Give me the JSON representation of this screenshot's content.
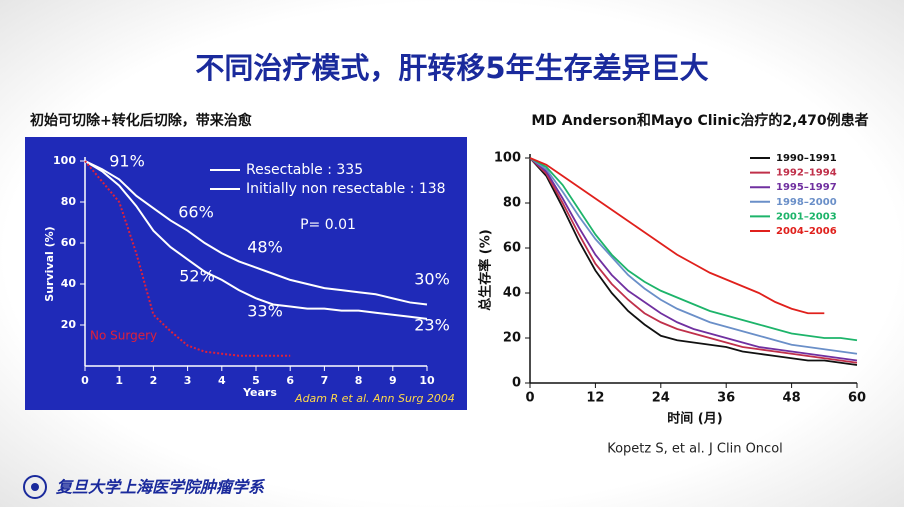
{
  "title": "不同治疗模式，肝转移5年生存差异巨大",
  "footer": "复旦大学上海医学院肿瘤学系",
  "chart_data": [
    {
      "type": "line",
      "subtitle": "初始可切除+转化后切除，带来治愈",
      "xlabel": "Years",
      "ylabel": "Survival (%)",
      "xlim": [
        0,
        10
      ],
      "ylim": [
        0,
        100
      ],
      "xticks": [
        0,
        1,
        2,
        3,
        4,
        5,
        6,
        7,
        8,
        9,
        10
      ],
      "yticks": [
        20,
        40,
        60,
        80,
        100
      ],
      "x": [
        0,
        0.5,
        1,
        1.5,
        2,
        2.5,
        3,
        3.5,
        4,
        4.5,
        5,
        5.5,
        6,
        6.5,
        7,
        7.5,
        8,
        8.5,
        9,
        9.5,
        10
      ],
      "series": [
        {
          "name": "Resectable : 335",
          "color": "#ffffff",
          "values": [
            100,
            96,
            91,
            83,
            77,
            71,
            66,
            60,
            55,
            51,
            48,
            45,
            42,
            40,
            38,
            37,
            36,
            35,
            33,
            31,
            30
          ]
        },
        {
          "name": "Initially non resectable : 138",
          "color": "#ffffff",
          "values": [
            100,
            95,
            88,
            78,
            66,
            58,
            52,
            46,
            42,
            37,
            33,
            30,
            29,
            28,
            28,
            27,
            27,
            26,
            25,
            24,
            23
          ]
        },
        {
          "name": "No Surgery",
          "color": "#e0203a",
          "dashed": true,
          "values": [
            100,
            90,
            80,
            55,
            25,
            17,
            10,
            7,
            6,
            5,
            5,
            5,
            5,
            null,
            null,
            null,
            null,
            null,
            null,
            null,
            null
          ]
        }
      ],
      "annotations": [
        "91%",
        "66%",
        "48%",
        "52%",
        "33%",
        "30%",
        "23%",
        "P= 0.01",
        "Adam R et al. Ann Surg 2004"
      ]
    },
    {
      "type": "line",
      "title": "MD Anderson和Mayo Clinic治疗的2,470例患者",
      "xlabel": "时间 (月)",
      "ylabel": "总生存率 (%)",
      "source": "Kopetz S, et al. J Clin Oncol",
      "xlim": [
        0,
        60
      ],
      "ylim": [
        0,
        100
      ],
      "xticks": [
        0,
        12,
        24,
        36,
        48,
        60
      ],
      "yticks": [
        0,
        20,
        40,
        60,
        80,
        100
      ],
      "x": [
        0,
        3,
        6,
        9,
        12,
        15,
        18,
        21,
        24,
        27,
        30,
        33,
        36,
        39,
        42,
        45,
        48,
        51,
        54,
        57,
        60
      ],
      "series": [
        {
          "name": "1990–1991",
          "color": "#111111",
          "values": [
            100,
            92,
            78,
            63,
            50,
            40,
            32,
            26,
            21,
            19,
            18,
            17,
            16,
            14,
            13,
            12,
            11,
            10,
            10,
            9,
            8
          ]
        },
        {
          "name": "1992–1994",
          "color": "#c0304a",
          "values": [
            100,
            93,
            80,
            66,
            53,
            44,
            37,
            31,
            27,
            24,
            22,
            20,
            18,
            16,
            15,
            14,
            13,
            12,
            11,
            10,
            9
          ]
        },
        {
          "name": "1995–1997",
          "color": "#7030a0",
          "values": [
            100,
            94,
            82,
            69,
            57,
            48,
            41,
            36,
            31,
            27,
            24,
            22,
            20,
            18,
            16,
            15,
            14,
            13,
            12,
            11,
            10
          ]
        },
        {
          "name": "1998–2000",
          "color": "#6a8fc8",
          "values": [
            100,
            95,
            85,
            74,
            64,
            56,
            48,
            42,
            37,
            33,
            30,
            27,
            25,
            23,
            21,
            19,
            17,
            16,
            15,
            14,
            13
          ]
        },
        {
          "name": "2001–2003",
          "color": "#1db46a",
          "values": [
            100,
            96,
            88,
            77,
            66,
            57,
            50,
            45,
            41,
            38,
            35,
            32,
            30,
            28,
            26,
            24,
            22,
            21,
            20,
            20,
            19
          ]
        },
        {
          "name": "2004–2006",
          "color": "#e0201c",
          "values": [
            100,
            97,
            92,
            87,
            82,
            77,
            72,
            67,
            62,
            57,
            53,
            49,
            46,
            43,
            40,
            36,
            33,
            31,
            31,
            null,
            null
          ]
        }
      ]
    }
  ]
}
